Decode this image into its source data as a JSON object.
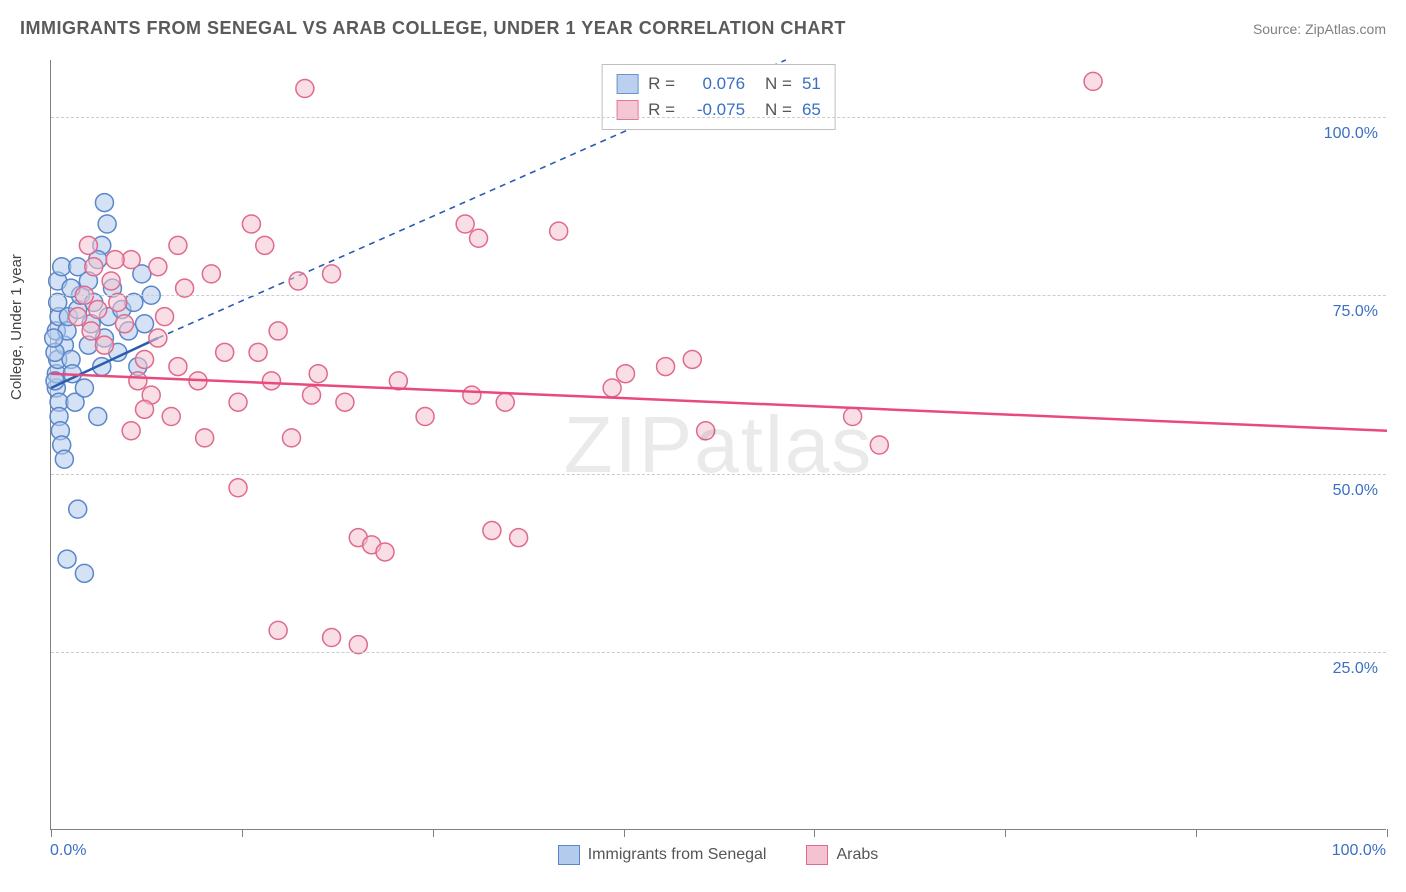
{
  "title": "IMMIGRANTS FROM SENEGAL VS ARAB COLLEGE, UNDER 1 YEAR CORRELATION CHART",
  "source": "Source: ZipAtlas.com",
  "y_axis_title": "College, Under 1 year",
  "watermark_bold": "ZIP",
  "watermark_thin": "atlas",
  "chart": {
    "type": "scatter",
    "xlim": [
      0,
      100
    ],
    "ylim": [
      0,
      108
    ],
    "x_ticks_major": [
      0,
      100
    ],
    "x_ticks_minor": [
      14.3,
      28.6,
      42.9,
      57.1,
      71.4,
      85.7
    ],
    "x_tick_labels": {
      "0": "0.0%",
      "100": "100.0%"
    },
    "y_gridlines": [
      25,
      50,
      75,
      100
    ],
    "y_tick_labels": {
      "25": "25.0%",
      "50": "50.0%",
      "75": "75.0%",
      "100": "100.0%"
    },
    "background_color": "#ffffff",
    "grid_color": "#cccccc",
    "axis_color": "#808080",
    "label_color": "#3a6fc4",
    "marker_radius": 9,
    "marker_stroke_width": 1.5,
    "series": [
      {
        "name": "Immigrants from Senegal",
        "fill": "#b3cbed",
        "stroke": "#5a87c9",
        "fill_opacity": 0.55,
        "R": "0.076",
        "N": "51",
        "regression_solid": {
          "x1": 0,
          "y1": 62,
          "x2": 8,
          "y2": 69
        },
        "regression_dashed": {
          "x1": 8,
          "y1": 69,
          "x2": 55,
          "y2": 108
        },
        "trend_stroke": "#2a5db0",
        "trend_width": 2.5,
        "dash_pattern": "6,5",
        "points": [
          {
            "x": 0.4,
            "y": 62
          },
          {
            "x": 0.4,
            "y": 64
          },
          {
            "x": 0.5,
            "y": 66
          },
          {
            "x": 0.4,
            "y": 70
          },
          {
            "x": 0.6,
            "y": 72
          },
          {
            "x": 0.5,
            "y": 74
          },
          {
            "x": 0.6,
            "y": 60
          },
          {
            "x": 0.6,
            "y": 58
          },
          {
            "x": 0.7,
            "y": 56
          },
          {
            "x": 0.8,
            "y": 54
          },
          {
            "x": 1.0,
            "y": 68
          },
          {
            "x": 1.2,
            "y": 70
          },
          {
            "x": 1.3,
            "y": 72
          },
          {
            "x": 1.5,
            "y": 66
          },
          {
            "x": 1.6,
            "y": 64
          },
          {
            "x": 1.8,
            "y": 60
          },
          {
            "x": 2.0,
            "y": 73
          },
          {
            "x": 2.2,
            "y": 75
          },
          {
            "x": 2.5,
            "y": 62
          },
          {
            "x": 2.8,
            "y": 68
          },
          {
            "x": 3.0,
            "y": 71
          },
          {
            "x": 3.2,
            "y": 74
          },
          {
            "x": 3.5,
            "y": 58
          },
          {
            "x": 3.8,
            "y": 65
          },
          {
            "x": 4.0,
            "y": 69
          },
          {
            "x": 4.3,
            "y": 72
          },
          {
            "x": 4.6,
            "y": 76
          },
          {
            "x": 4.0,
            "y": 88
          },
          {
            "x": 4.2,
            "y": 85
          },
          {
            "x": 3.8,
            "y": 82
          },
          {
            "x": 3.5,
            "y": 80
          },
          {
            "x": 1.0,
            "y": 52
          },
          {
            "x": 1.2,
            "y": 38
          },
          {
            "x": 2.0,
            "y": 45
          },
          {
            "x": 2.5,
            "y": 36
          },
          {
            "x": 5.0,
            "y": 67
          },
          {
            "x": 5.3,
            "y": 73
          },
          {
            "x": 5.8,
            "y": 70
          },
          {
            "x": 6.2,
            "y": 74
          },
          {
            "x": 6.5,
            "y": 65
          },
          {
            "x": 6.8,
            "y": 78
          },
          {
            "x": 7.0,
            "y": 71
          },
          {
            "x": 7.5,
            "y": 75
          },
          {
            "x": 0.5,
            "y": 77
          },
          {
            "x": 0.8,
            "y": 79
          },
          {
            "x": 1.5,
            "y": 76
          },
          {
            "x": 2.0,
            "y": 79
          },
          {
            "x": 2.8,
            "y": 77
          },
          {
            "x": 0.3,
            "y": 67
          },
          {
            "x": 0.3,
            "y": 63
          },
          {
            "x": 0.2,
            "y": 69
          }
        ]
      },
      {
        "name": "Arabs",
        "fill": "#f4c2d0",
        "stroke": "#e06a8c",
        "fill_opacity": 0.55,
        "R": "-0.075",
        "N": "65",
        "regression_solid": {
          "x1": 0,
          "y1": 64,
          "x2": 100,
          "y2": 56
        },
        "trend_stroke": "#e84a7f",
        "trend_width": 2.5,
        "points": [
          {
            "x": 2.0,
            "y": 72
          },
          {
            "x": 2.5,
            "y": 75
          },
          {
            "x": 3.0,
            "y": 70
          },
          {
            "x": 3.5,
            "y": 73
          },
          {
            "x": 4.0,
            "y": 68
          },
          {
            "x": 4.5,
            "y": 77
          },
          {
            "x": 5.0,
            "y": 74
          },
          {
            "x": 5.5,
            "y": 71
          },
          {
            "x": 6.0,
            "y": 80
          },
          {
            "x": 6.5,
            "y": 63
          },
          {
            "x": 7.0,
            "y": 66
          },
          {
            "x": 7.5,
            "y": 61
          },
          {
            "x": 8.0,
            "y": 69
          },
          {
            "x": 8.5,
            "y": 72
          },
          {
            "x": 9.0,
            "y": 58
          },
          {
            "x": 9.5,
            "y": 65
          },
          {
            "x": 10.0,
            "y": 76
          },
          {
            "x": 11.0,
            "y": 63
          },
          {
            "x": 12.0,
            "y": 78
          },
          {
            "x": 13.0,
            "y": 67
          },
          {
            "x": 14.0,
            "y": 60
          },
          {
            "x": 15.0,
            "y": 85
          },
          {
            "x": 16.0,
            "y": 82
          },
          {
            "x": 17.0,
            "y": 70
          },
          {
            "x": 18.0,
            "y": 55
          },
          {
            "x": 14.0,
            "y": 48
          },
          {
            "x": 19.0,
            "y": 104
          },
          {
            "x": 20.0,
            "y": 64
          },
          {
            "x": 21.0,
            "y": 78
          },
          {
            "x": 22.0,
            "y": 60
          },
          {
            "x": 23.0,
            "y": 41
          },
          {
            "x": 24.0,
            "y": 40
          },
          {
            "x": 25.0,
            "y": 39
          },
          {
            "x": 17.0,
            "y": 28
          },
          {
            "x": 21.0,
            "y": 27
          },
          {
            "x": 23.0,
            "y": 26
          },
          {
            "x": 26.0,
            "y": 63
          },
          {
            "x": 28.0,
            "y": 58
          },
          {
            "x": 31.0,
            "y": 85
          },
          {
            "x": 31.5,
            "y": 61
          },
          {
            "x": 32.0,
            "y": 83
          },
          {
            "x": 33.0,
            "y": 42
          },
          {
            "x": 34.0,
            "y": 60
          },
          {
            "x": 35.0,
            "y": 41
          },
          {
            "x": 38.0,
            "y": 84
          },
          {
            "x": 42.0,
            "y": 62
          },
          {
            "x": 43.0,
            "y": 64
          },
          {
            "x": 46.0,
            "y": 65
          },
          {
            "x": 48.0,
            "y": 66
          },
          {
            "x": 49.0,
            "y": 56
          },
          {
            "x": 60.0,
            "y": 58
          },
          {
            "x": 62.0,
            "y": 54
          },
          {
            "x": 78.0,
            "y": 105
          },
          {
            "x": 4.8,
            "y": 80
          },
          {
            "x": 3.2,
            "y": 79
          },
          {
            "x": 2.8,
            "y": 82
          },
          {
            "x": 6.0,
            "y": 56
          },
          {
            "x": 11.5,
            "y": 55
          },
          {
            "x": 15.5,
            "y": 67
          },
          {
            "x": 16.5,
            "y": 63
          },
          {
            "x": 18.5,
            "y": 77
          },
          {
            "x": 19.5,
            "y": 61
          },
          {
            "x": 8.0,
            "y": 79
          },
          {
            "x": 9.5,
            "y": 82
          },
          {
            "x": 7.0,
            "y": 59
          }
        ]
      }
    ]
  },
  "legend_stats": {
    "r_label": "R =",
    "n_label": "N ="
  },
  "bottom_legend": [
    {
      "label": "Immigrants from Senegal",
      "fill": "#b3cbed",
      "stroke": "#5a87c9"
    },
    {
      "label": "Arabs",
      "fill": "#f4c2d0",
      "stroke": "#e06a8c"
    }
  ]
}
